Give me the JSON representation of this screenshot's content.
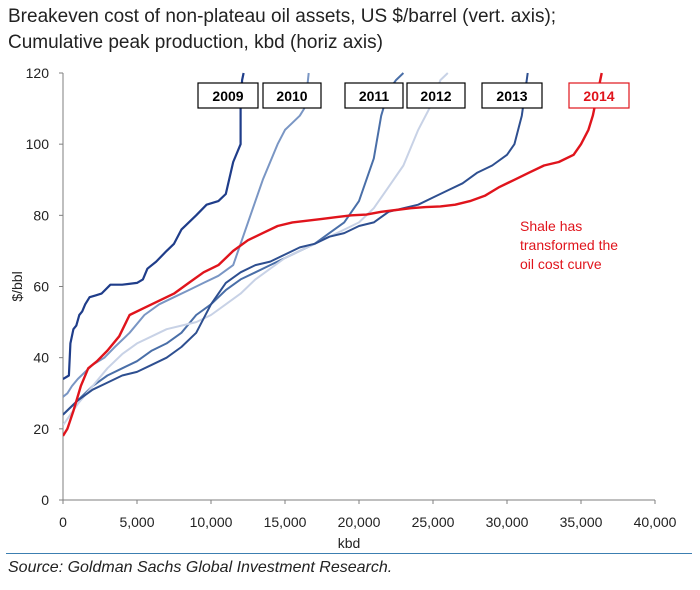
{
  "title_lines": [
    "Breakeven cost of non-plateau oil assets, US $/barrel (vert. axis);",
    "Cumulative peak production, kbd (horiz axis)"
  ],
  "source": "Source: Goldman Sachs Global Investment Research.",
  "chart_data": {
    "type": "line",
    "xlabel": "kbd",
    "ylabel": "$/bbl",
    "xlim": [
      0,
      40000
    ],
    "ylim": [
      0,
      120
    ],
    "x_ticks": [
      0,
      5000,
      10000,
      15000,
      20000,
      25000,
      30000,
      35000,
      40000
    ],
    "x_tick_labels": [
      "0",
      "5,000",
      "10,000",
      "15,000",
      "20,000",
      "25,000",
      "30,000",
      "35,000",
      "40,000"
    ],
    "y_ticks": [
      0,
      20,
      40,
      60,
      80,
      100,
      120
    ],
    "y_tick_labels": [
      "0",
      "20",
      "40",
      "60",
      "80",
      "100",
      "120"
    ],
    "grid": false,
    "legend": "boxed labels along top",
    "series": [
      {
        "name": "2009",
        "color": "#1f3d8a",
        "width": 2.2,
        "x": [
          0,
          400,
          500,
          700,
          900,
          1100,
          1300,
          1500,
          1800,
          2200,
          2600,
          3200,
          4000,
          5000,
          5400,
          5700,
          6300,
          7000,
          7500,
          8000,
          8500,
          9000,
          9700,
          10500,
          11000,
          11500,
          12000,
          12000,
          12100,
          12200
        ],
        "y": [
          34,
          35,
          44,
          48,
          49,
          52,
          53,
          55,
          57,
          57.5,
          58,
          60.5,
          60.5,
          61,
          62,
          65,
          67,
          70,
          72,
          76,
          78,
          80,
          83,
          84,
          86,
          95,
          100,
          110,
          118,
          120
        ]
      },
      {
        "name": "2010",
        "color": "#7a96c4",
        "width": 2,
        "x": [
          0,
          300,
          600,
          1000,
          1500,
          2000,
          2800,
          3500,
          4500,
          5500,
          6500,
          7500,
          8500,
          9500,
          10500,
          11500,
          12000,
          12500,
          13000,
          13500,
          14000,
          14500,
          15000,
          15500,
          16000,
          16300,
          16500,
          16600
        ],
        "y": [
          29,
          30,
          32,
          34,
          36,
          38,
          40,
          43,
          47,
          52,
          55,
          57,
          59,
          61,
          63,
          66,
          72,
          78,
          84,
          90,
          95,
          100,
          104,
          106,
          108,
          110,
          116,
          120
        ]
      },
      {
        "name": "2011",
        "color": "#4a6fa8",
        "width": 2,
        "x": [
          0,
          500,
          1000,
          2000,
          3000,
          4000,
          5000,
          6000,
          7000,
          8000,
          9000,
          10000,
          11000,
          12000,
          13000,
          14000,
          15000,
          16000,
          17000,
          18000,
          19000,
          20000,
          21000,
          21500,
          22000,
          22500,
          23000
        ],
        "y": [
          24,
          26,
          28,
          32,
          35,
          37,
          39,
          42,
          44,
          47,
          52,
          55,
          59,
          62,
          64,
          66,
          68,
          70,
          72,
          75,
          78,
          84,
          96,
          108,
          115,
          118,
          120
        ]
      },
      {
        "name": "2012",
        "color": "#c8d2e6",
        "width": 2,
        "x": [
          0,
          1000,
          2000,
          3000,
          4000,
          5000,
          6000,
          7000,
          8000,
          9000,
          10000,
          11000,
          12000,
          13000,
          14000,
          15000,
          16000,
          17000,
          18000,
          19000,
          20000,
          21000,
          22000,
          23000,
          24000,
          25000,
          25500,
          26000
        ],
        "y": [
          21,
          27,
          32,
          37,
          41,
          44,
          46,
          48,
          49,
          50,
          52,
          55,
          58,
          62,
          65,
          68,
          70,
          72,
          74,
          76,
          78,
          82,
          88,
          94,
          104,
          112,
          118,
          120
        ]
      },
      {
        "name": "2013",
        "color": "#2e4f90",
        "width": 2,
        "x": [
          0,
          1000,
          2000,
          3000,
          4000,
          5000,
          6000,
          7000,
          8000,
          9000,
          10000,
          11000,
          12000,
          13000,
          14000,
          15000,
          16000,
          17000,
          18000,
          19000,
          20000,
          21000,
          22000,
          23000,
          24000,
          25000,
          26000,
          27000,
          28000,
          29000,
          30000,
          30500,
          31000,
          31200,
          31400
        ],
        "y": [
          24,
          28,
          31,
          33,
          35,
          36,
          38,
          40,
          43,
          47,
          55,
          61,
          64,
          66,
          67,
          69,
          71,
          72,
          74,
          75,
          77,
          78,
          81,
          82,
          83,
          85,
          87,
          89,
          92,
          94,
          97,
          100,
          108,
          114,
          120
        ]
      },
      {
        "name": "2014",
        "color": "#e0141c",
        "width": 2.4,
        "x": [
          0,
          300,
          700,
          1200,
          1700,
          2300,
          3000,
          3800,
          4500,
          5500,
          6500,
          7500,
          8500,
          9500,
          10500,
          11500,
          12500,
          13500,
          14500,
          15500,
          16500,
          17500,
          18500,
          19500,
          20500,
          21500,
          22500,
          23500,
          24500,
          25500,
          26500,
          27500,
          28500,
          29500,
          30500,
          31500,
          32500,
          33500,
          34500,
          35000,
          35500,
          35800,
          36000,
          36200,
          36400
        ],
        "y": [
          18,
          20,
          25,
          32,
          37,
          39,
          42,
          46,
          52,
          54,
          56,
          58,
          61,
          64,
          66,
          70,
          73,
          75,
          77,
          78,
          78.5,
          79,
          79.5,
          80,
          80.2,
          81,
          81.5,
          82,
          82.3,
          82.5,
          83,
          84,
          85.5,
          88,
          90,
          92,
          94,
          95,
          97,
          100,
          104,
          108,
          112,
          116,
          120
        ]
      }
    ],
    "annotation": {
      "lines": [
        "Shale has",
        "transformed the",
        "oil cost curve"
      ],
      "color": "#e0141c"
    }
  }
}
